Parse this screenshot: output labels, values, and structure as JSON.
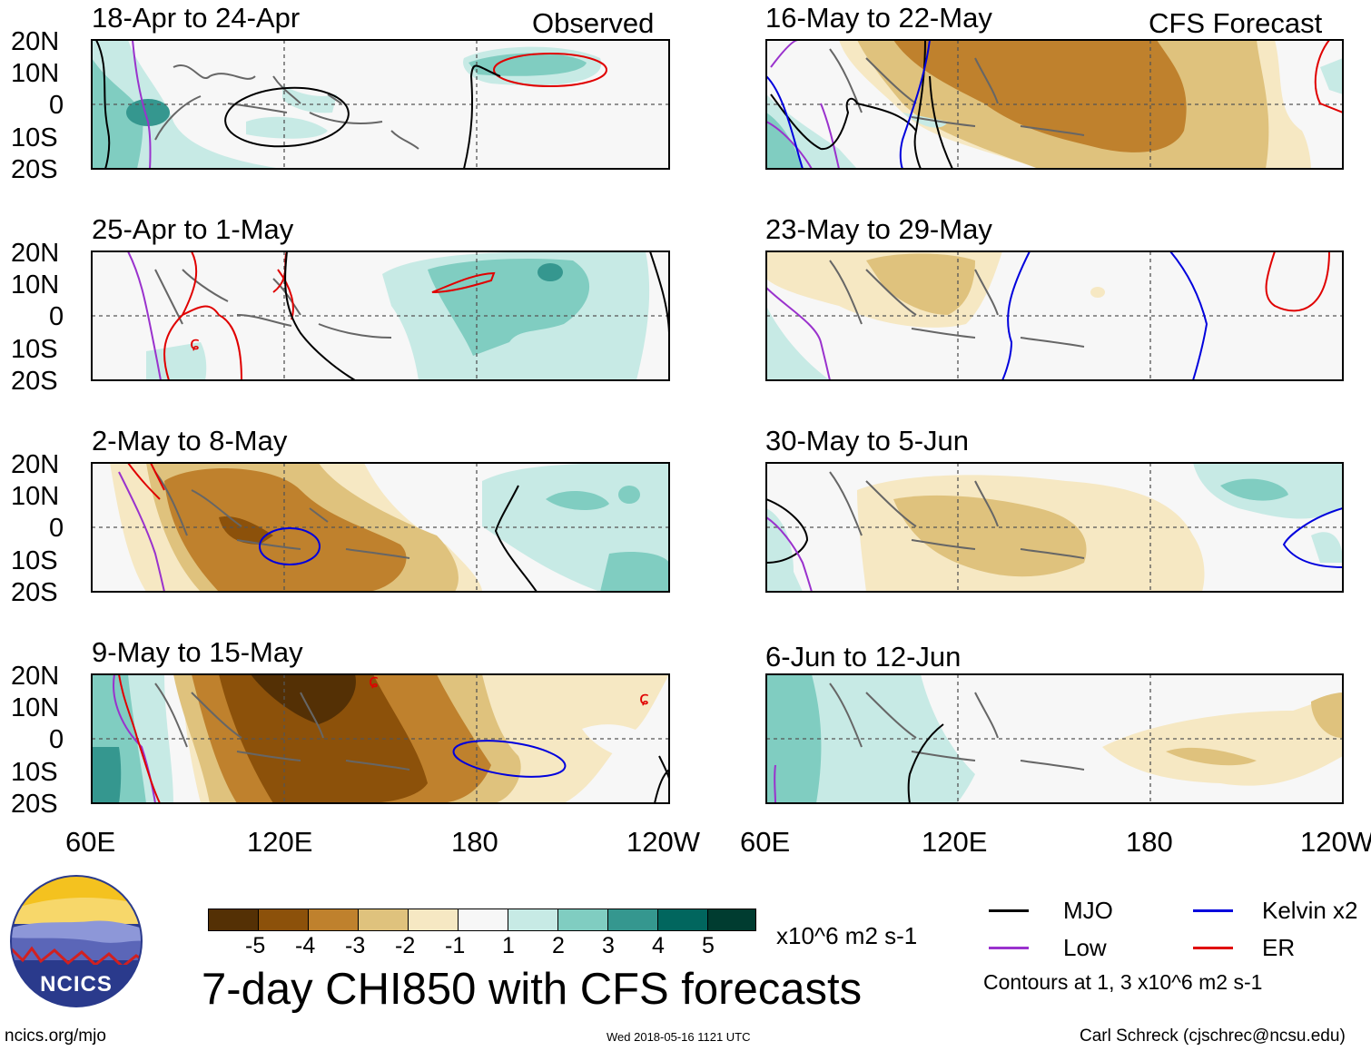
{
  "header": {
    "observed_label": "Observed",
    "forecast_label": "CFS Forecast"
  },
  "lat_labels": [
    "20N",
    "10N",
    "0",
    "10S",
    "20S"
  ],
  "lon_labels": [
    "60E",
    "120E",
    "180",
    "120W"
  ],
  "panels_left": [
    {
      "title": "18-Apr to 24-Apr"
    },
    {
      "title": "25-Apr to 1-May"
    },
    {
      "title": "2-May to 8-May"
    },
    {
      "title": "9-May to 15-May"
    }
  ],
  "panels_right": [
    {
      "title": "16-May to 22-May"
    },
    {
      "title": "23-May to 29-May"
    },
    {
      "title": "30-May to 5-Jun"
    },
    {
      "title": "6-Jun to 12-Jun"
    }
  ],
  "colorbar": {
    "colors": [
      "#543005",
      "#8c510a",
      "#bf812d",
      "#dfc27d",
      "#f6e8c3",
      "#f7f7f7",
      "#c7eae5",
      "#80cdc1",
      "#35978f",
      "#01665e",
      "#003c30"
    ],
    "ticks": [
      "-5",
      "-4",
      "-3",
      "-2",
      "-1",
      "1",
      "2",
      "3",
      "4",
      "5"
    ],
    "units": "x10^6 m2 s-1"
  },
  "main_title": "7-day CHI850 with CFS forecasts",
  "legend": {
    "mjo": {
      "label": "MJO",
      "color": "#000000"
    },
    "kelvin": {
      "label": "Kelvin x2",
      "color": "#0000dd"
    },
    "low": {
      "label": "Low",
      "color": "#9a32cd"
    },
    "er": {
      "label": "ER",
      "color": "#e00000"
    },
    "contours_note": "Contours at 1, 3 x10^6 m2 s-1"
  },
  "footer": {
    "url": "ncics.org/mjo",
    "timestamp": "Wed 2018-05-16 1121 UTC",
    "credit": "Carl Schreck (cjschrec@ncsu.edu)"
  },
  "logo": {
    "text": "NCICS"
  }
}
